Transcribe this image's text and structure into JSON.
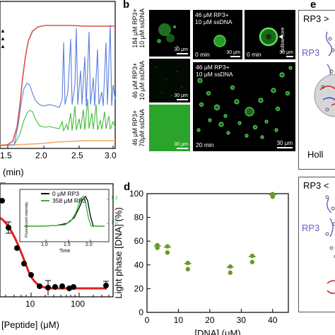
{
  "panel_a": {
    "legend_markers": [
      "▲",
      "▲",
      "▲"
    ],
    "x_axis_label": "(min)",
    "x_ticks": [
      "1.5",
      "2.0",
      "2.5",
      "3.0"
    ],
    "colors": {
      "red": "#d9534f",
      "blue": "#5b7fdc",
      "green": "#44bb3c",
      "orange": "#f0a860"
    }
  },
  "panel_b": {
    "letter": "b",
    "row_labels": [
      "184 μM RP3+\n10 μM ssDNA",
      "46 μM RP3+\n10 μM ssDNA",
      "46 μM RP3+\n70μM ssDNA"
    ],
    "col_header": "46 μM RP3+\n10 μM ssDNA",
    "big_header": "46 μM RP3+\n10 μM ssDNA",
    "time_0": "0 min",
    "time_0b": "0 min",
    "time_20": "20 min",
    "hollow_core": "hollow core",
    "scale_30um": "30 μm"
  },
  "panel_c": {
    "x_axis_label": "[Peptide] (μM)",
    "x_ticks": [
      "10",
      "100"
    ],
    "inset": {
      "legend": [
        "0 μM RP3",
        "358 μM RP3"
      ],
      "ylabel": "Fluorescent intensity",
      "xlabel": "Time",
      "x_ticks": [
        "1.0",
        "1.5",
        "2.0"
      ],
      "right_ticks": [
        "1.1",
        "1.0"
      ]
    }
  },
  "panel_d": {
    "letter": "d",
    "chart_data": {
      "type": "scatter",
      "title": "",
      "xlabel": "[DNA] (μM)",
      "ylabel": "Light phase [DNA] (%)",
      "xlim": [
        0,
        45
      ],
      "ylim": [
        0,
        100
      ],
      "x_ticks": [
        "0",
        "10",
        "20",
        "30",
        "40"
      ],
      "y_ticks": [
        "0",
        "20",
        "40",
        "60",
        "80",
        "100"
      ],
      "series": [
        {
          "x": [
            3.3,
            6.5,
            13,
            26.5,
            33.5,
            40
          ],
          "y": [
            56,
            55,
            41,
            38,
            47,
            99
          ],
          "y_low": [
            55,
            51,
            37,
            34,
            43,
            98
          ]
        }
      ],
      "marker_color": "#6b9a2a"
    }
  },
  "panel_e": {
    "letter": "e",
    "top_title": "RP3 >",
    "rp3_label": "RP3",
    "holl_label": "Holl",
    "bottom_title": "RP3 <",
    "rp3_label_2": "RP3"
  }
}
